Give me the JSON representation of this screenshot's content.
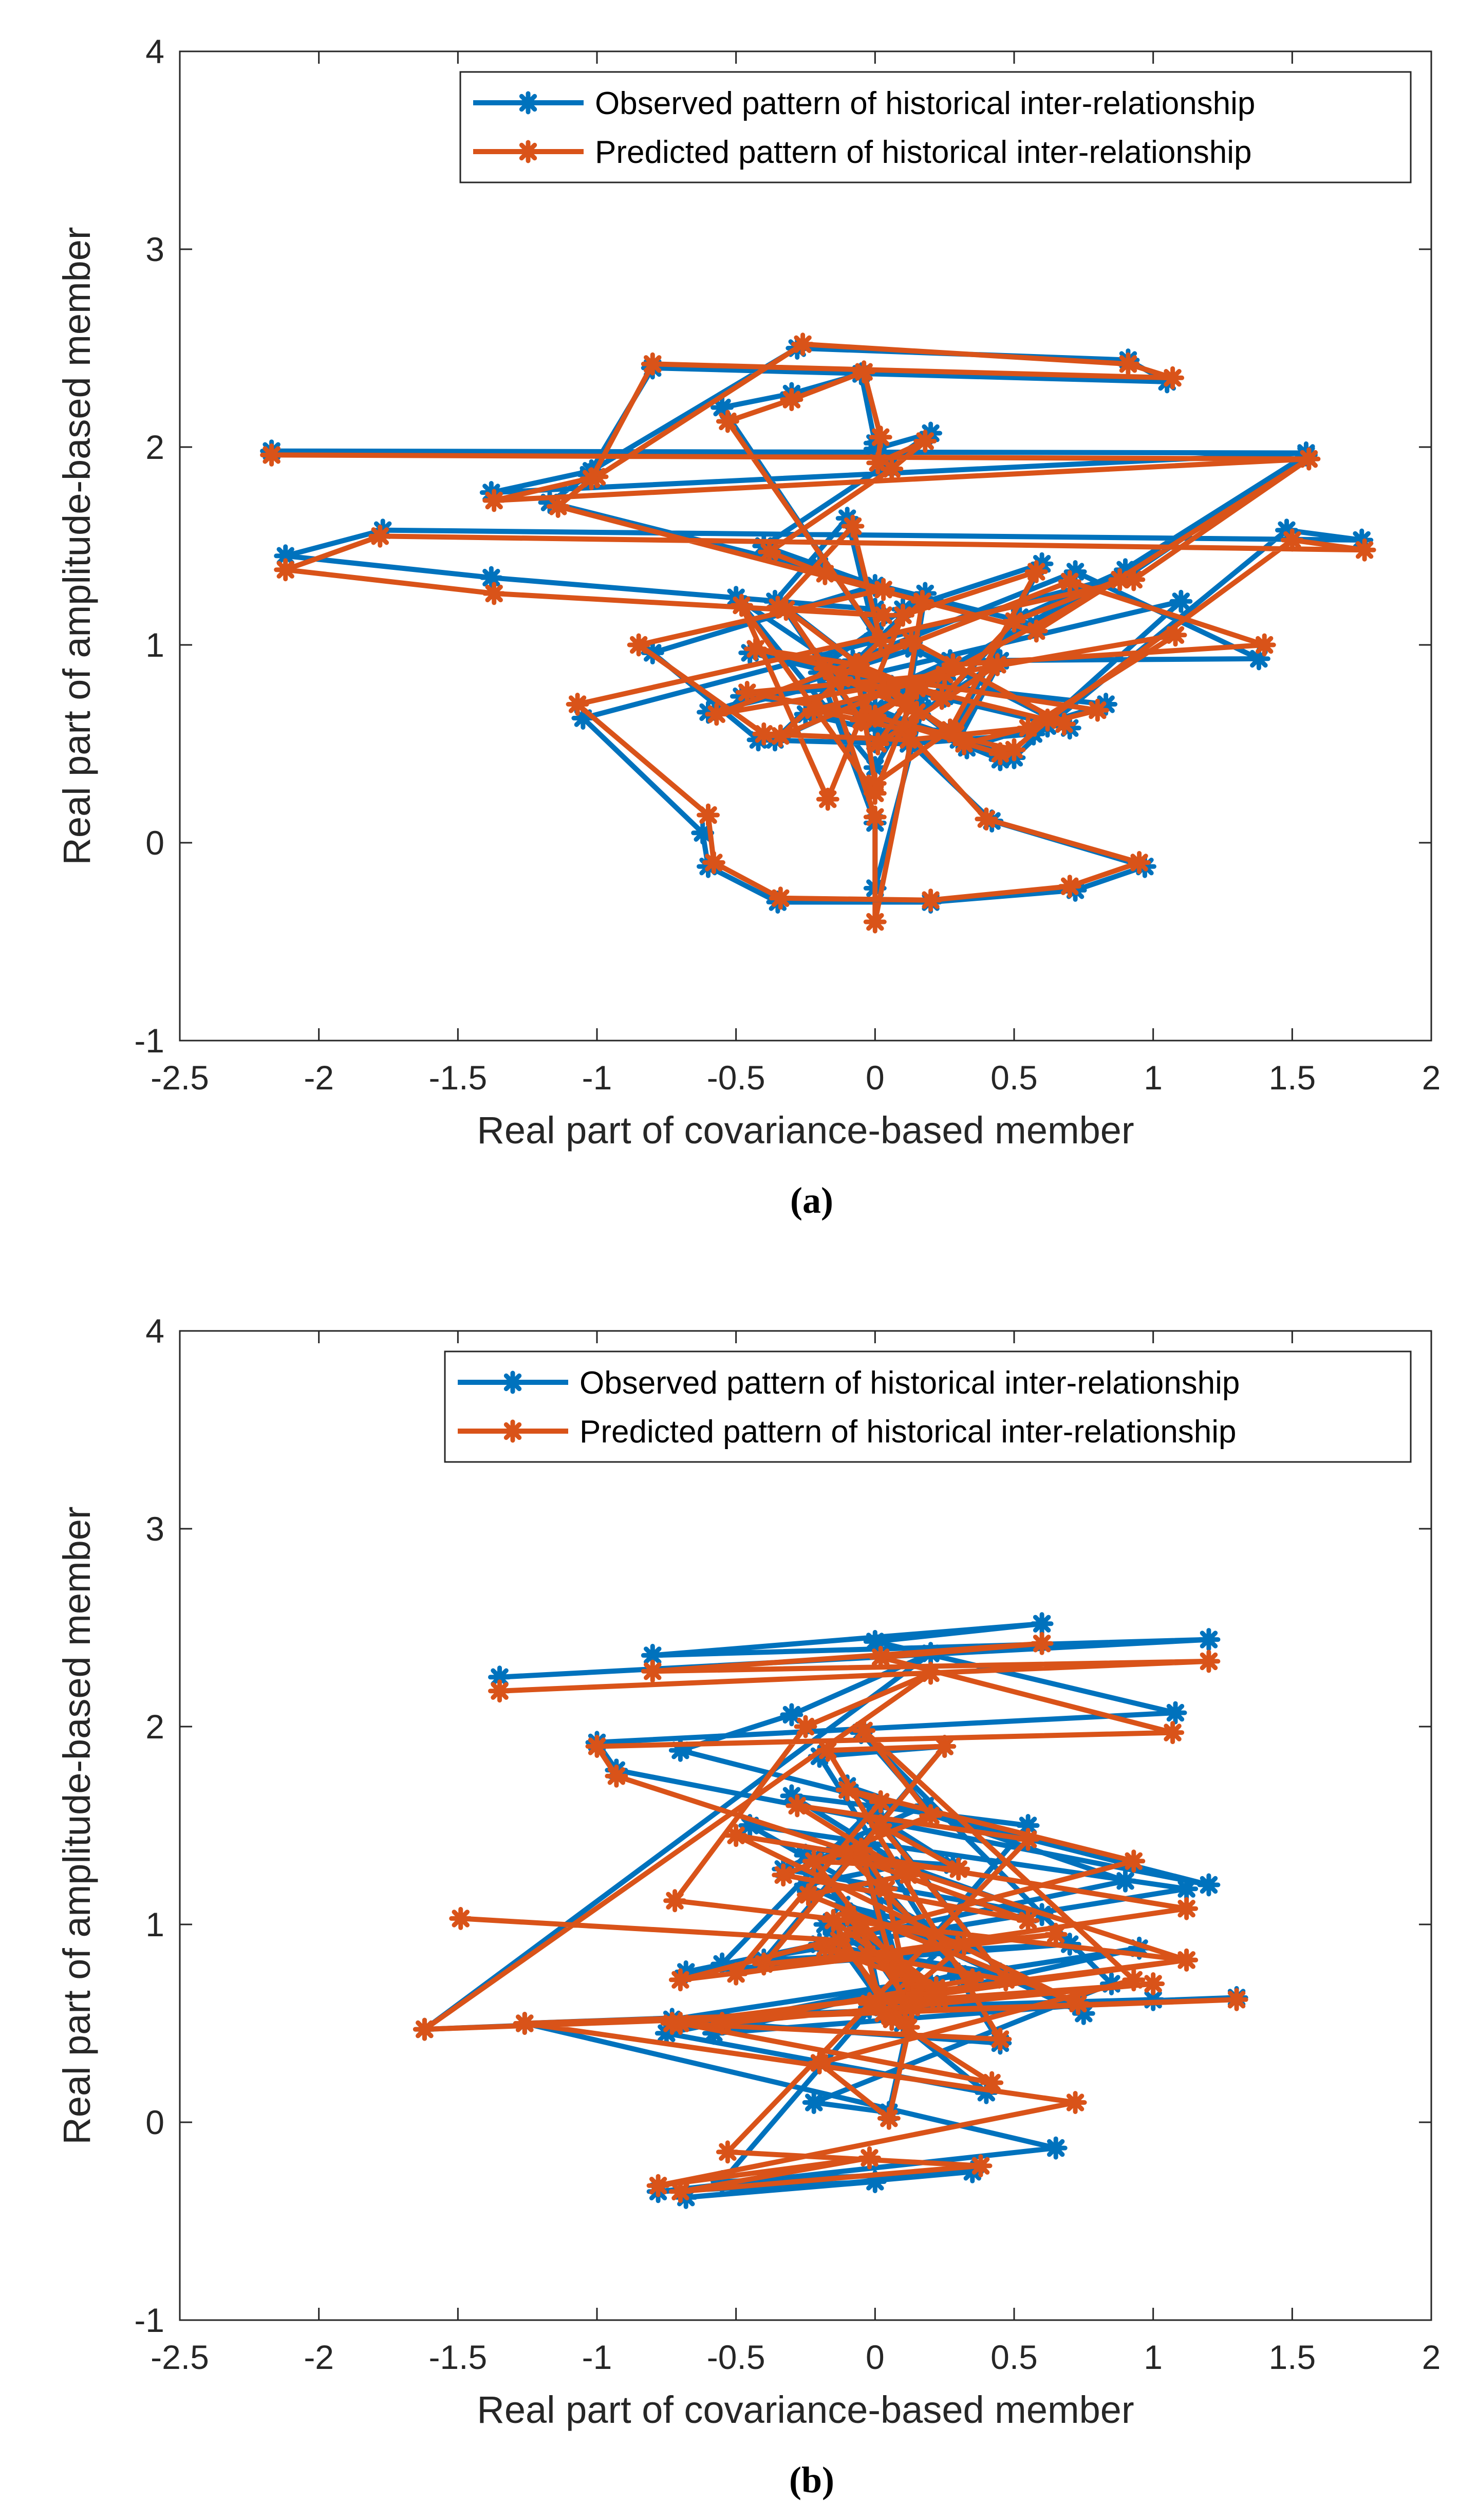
{
  "figure_captions": [
    "(a)",
    "(b)"
  ],
  "colors": {
    "observed": "#0072BD",
    "predicted": "#D95319",
    "axis": "#262626"
  },
  "chart_data": [
    {
      "type": "line",
      "panel": "a",
      "caption": "(a)",
      "xlabel": "Real part of covariance-based member",
      "ylabel": "Real part of amplitude-based member",
      "xlim": [
        -2.5,
        2
      ],
      "ylim": [
        -1,
        4
      ],
      "xticks": [
        "-2.5",
        "-2",
        "-1.5",
        "-1",
        "-0.5",
        "0",
        "0.5",
        "1",
        "1.5",
        "2"
      ],
      "yticks": [
        "-1",
        "0",
        "1",
        "2",
        "3",
        "4"
      ],
      "grid": false,
      "legend_position": "top-right",
      "series": [
        {
          "name": "Observed pattern of historical inter-relationship",
          "x": [
            -2.17,
            1.55,
            -1.38,
            -1.02,
            -0.28,
            0.91,
            1.05,
            -0.8,
            -1.03,
            -1.17,
            0.58,
            1.55,
            0.92,
            -1.05,
            -0.62,
            -0.6,
            -0.35,
            0.2,
            0.72,
            0.97,
            0.42,
            0.1,
            -0.25,
            0.25,
            -0.48,
            0.0,
            0.5,
            0.62,
            1.48,
            1.75,
            -1.77,
            -2.12,
            -1.38,
            0.0,
            -0.36,
            -0.1,
            0.0,
            -0.55,
            -0.3,
            -0.05,
            0.0,
            0.0,
            0.2,
            0.05,
            -0.4,
            -0.2,
            0.0,
            -0.8,
            -0.42,
            0.12,
            0.57,
            1.1,
            -0.6,
            0.14,
            0.7,
            -0.45,
            -0.08,
            0.25,
            0.52,
            0.9,
            -0.06,
            -0.34,
            0.33,
            0.83,
            -0.2,
            0.0,
            0.0,
            0.17,
            -0.14,
            0.06,
            0.3,
            0.45,
            0.0,
            0.12,
            0.18,
            -0.36,
            0.27,
            1.38,
            0.72,
            -0.08,
            0.0,
            0.28,
            0.6,
            0.1,
            -0.16,
            -0.5,
            0.0,
            0.16,
            0.0,
            0.45
          ],
          "y": [
            1.98,
            1.97,
            1.77,
            1.88,
            2.5,
            2.44,
            2.33,
            2.4,
            1.86,
            1.72,
            1.1,
            1.96,
            1.36,
            0.63,
            0.05,
            -0.12,
            -0.3,
            -0.3,
            -0.24,
            -0.12,
            0.11,
            0.54,
            0.65,
            0.83,
            0.74,
            0.67,
            0.43,
            0.59,
            1.58,
            1.53,
            1.58,
            1.45,
            1.34,
            1.18,
            1.22,
            1.64,
            1.05,
            2.2,
            2.27,
            2.37,
            2.02,
            1.99,
            2.07,
            1.92,
            1.5,
            1.4,
            1.3,
            0.96,
            0.52,
            0.5,
            0.55,
            1.22,
            0.66,
            0.98,
            0.58,
            0.96,
            0.88,
            0.74,
            1.14,
            1.38,
            0.63,
            1.21,
            0.48,
            0.7,
            0.86,
            0.1,
            -0.23,
            0.68,
            0.85,
            0.79,
            0.52,
            0.92,
            0.51,
            0.72,
            1.26,
            0.52,
            0.92,
            0.93,
            1.37,
            0.92,
            0.6,
            0.56,
            1.41,
            1.18,
            0.92,
            1.24,
            0.38,
            0.76,
            0.68,
            0.42
          ]
        },
        {
          "name": "Predicted pattern of historical inter-relationship",
          "x": [
            -2.17,
            1.56,
            -1.37,
            -1.0,
            -0.26,
            0.91,
            1.07,
            -0.8,
            -1.02,
            -1.14,
            0.58,
            1.56,
            0.93,
            -1.07,
            -0.6,
            -0.58,
            -0.34,
            0.2,
            0.7,
            0.95,
            0.4,
            0.11,
            -0.22,
            0.25,
            -0.46,
            -0.02,
            0.5,
            0.62,
            1.5,
            1.76,
            -1.78,
            -2.12,
            -1.37,
            0.03,
            -0.35,
            -0.08,
            0.02,
            -0.53,
            -0.3,
            -0.04,
            0.02,
            0.01,
            0.18,
            0.06,
            -0.38,
            -0.18,
            0.03,
            -0.85,
            -0.4,
            0.12,
            0.55,
            1.08,
            -0.57,
            0.13,
            0.68,
            -0.43,
            -0.06,
            0.24,
            0.5,
            0.88,
            -0.05,
            -0.32,
            0.32,
            0.8,
            -0.18,
            0.0,
            0.0,
            0.15,
            -0.12,
            0.05,
            0.29,
            0.44,
            0.01,
            0.11,
            0.17,
            -0.34,
            0.28,
            1.4,
            0.7,
            -0.07,
            0.0,
            0.27,
            0.58,
            0.1,
            -0.17,
            -0.48,
            0.0,
            0.15,
            0.0,
            0.45
          ],
          "y": [
            1.96,
            1.94,
            1.73,
            1.85,
            2.52,
            2.42,
            2.35,
            2.42,
            1.84,
            1.7,
            1.07,
            1.94,
            1.33,
            0.7,
            0.14,
            -0.1,
            -0.28,
            -0.29,
            -0.22,
            -0.1,
            0.12,
            0.57,
            0.67,
            0.85,
            0.76,
            0.64,
            0.47,
            0.62,
            1.53,
            1.48,
            1.55,
            1.38,
            1.26,
            1.15,
            1.19,
            1.6,
            1.02,
            2.13,
            2.24,
            2.38,
            2.05,
            1.92,
            2.03,
            1.89,
            1.47,
            1.36,
            1.28,
            1.0,
            0.55,
            0.52,
            0.58,
            1.05,
            0.65,
            1.02,
            0.6,
            0.98,
            0.9,
            0.73,
            1.12,
            1.33,
            0.62,
            1.18,
            0.5,
            0.67,
            0.88,
            0.13,
            -0.4,
            0.66,
            0.83,
            0.77,
            0.55,
            0.9,
            0.5,
            0.7,
            1.22,
            0.54,
            0.9,
            1.0,
            1.32,
            0.9,
            0.3,
            0.57,
            1.37,
            1.15,
            0.22,
            1.2,
            0.25,
            0.78,
            0.64,
            0.45
          ]
        }
      ]
    },
    {
      "type": "line",
      "panel": "b",
      "caption": "(b)",
      "xlabel": "Real part of covariance-based member",
      "ylabel": "Real part of amplitude-based member",
      "xlim": [
        -2.5,
        2
      ],
      "ylim": [
        -1,
        4
      ],
      "xticks": [
        "-2.5",
        "-2",
        "-1.5",
        "-1",
        "-0.5",
        "0",
        "0.5",
        "1",
        "1.5",
        "2"
      ],
      "yticks": [
        "-1",
        "0",
        "1",
        "2",
        "3",
        "4"
      ],
      "grid": false,
      "legend_position": "top-right",
      "series": [
        {
          "name": "Observed pattern of historical inter-relationship",
          "x": [
            -1.35,
            1.2,
            -0.8,
            0.6,
            0.0,
            1.08,
            -1.0,
            -0.93,
            1.2,
            -0.7,
            -0.3,
            0.2,
            -1.62,
            1.3,
            -1.26,
            0.65,
            -0.78,
            0.0,
            -0.68,
            0.35,
            -0.55,
            0.55,
            -0.3,
            0.1,
            -0.25,
            0.75,
            -0.45,
            1.12,
            -0.55,
            0.0,
            -0.1,
            0.9,
            -0.68,
            0.7,
            -0.4,
            0.25,
            -0.2,
            0.45,
            -0.73,
            0.95,
            -0.02,
            1.0,
            -0.58,
            0.3,
            -0.1,
            0.6,
            -0.33,
            0.18,
            -0.05,
            0.85,
            -0.22,
            0.05,
            0.15,
            -0.75,
            0.4,
            0.05,
            -0.18,
            0.22,
            0.08,
            -0.12,
            0.3,
            0.02,
            -0.02,
            0.1,
            -0.25,
            0.28,
            0.0,
            0.45,
            -0.2,
            0.2,
            -0.08,
            0.12,
            0.0,
            -0.05,
            0.1,
            -0.14
          ],
          "y": [
            2.25,
            2.44,
            2.36,
            2.52,
            2.43,
            2.07,
            1.92,
            1.78,
            1.2,
            1.88,
            2.06,
            2.37,
            0.47,
            0.63,
            0.5,
            -0.13,
            -0.35,
            -0.3,
            -0.38,
            -0.25,
            -0.3,
            1.5,
            1.65,
            1.3,
            1.2,
            0.55,
            1.5,
            1.18,
            0.8,
            1.6,
            1.7,
            1.22,
            0.76,
            0.9,
            0.82,
            1.9,
            1.85,
            0.4,
            0.52,
            0.88,
            0.58,
            0.62,
            0.45,
            0.75,
            1.4,
            1.05,
            1.28,
            1.6,
            1.97,
            0.7,
            0.1,
            0.05,
            0.7,
            0.45,
            0.15,
            0.55,
            1.0,
            0.65,
            0.82,
            1.1,
            0.95,
            0.6,
            0.88,
            0.7,
            1.35,
            1.3,
            1.55,
            0.75,
            0.9,
            0.7,
            1.0,
            0.6,
            1.2,
            1.4,
            0.5,
            0.95
          ]
        },
        {
          "name": "Predicted pattern of historical inter-relationship",
          "x": [
            -1.35,
            1.2,
            -0.8,
            0.6,
            0.02,
            1.07,
            -1.0,
            -0.93,
            1.12,
            -0.72,
            -0.25,
            0.2,
            -1.62,
            1.3,
            -1.26,
            0.72,
            -0.78,
            -0.02,
            -0.7,
            0.38,
            -0.53,
            0.55,
            -0.28,
            0.12,
            -0.24,
            0.73,
            -0.5,
            1.12,
            -0.5,
            0.02,
            -0.1,
            0.93,
            -0.7,
            0.65,
            -0.4,
            0.25,
            -0.17,
            0.45,
            -0.73,
            1.12,
            -0.02,
            1.0,
            -0.55,
            0.35,
            -0.1,
            0.55,
            -0.33,
            0.2,
            -0.04,
            0.93,
            -0.2,
            0.05,
            0.15,
            -0.7,
            0.42,
            0.06,
            -0.15,
            0.23,
            0.06,
            -0.1,
            0.32,
            0.03,
            -0.03,
            0.12,
            -0.22,
            0.3,
            0.02,
            0.47,
            -0.18,
            0.22,
            -0.06,
            0.13,
            0.04,
            -0.05,
            0.12,
            -0.13,
            -1.49
          ],
          "y": [
            2.18,
            2.33,
            2.28,
            2.42,
            2.35,
            1.97,
            1.9,
            1.75,
            0.82,
            1.12,
            2.0,
            2.27,
            0.47,
            0.62,
            0.5,
            0.1,
            -0.32,
            -0.18,
            -0.35,
            -0.22,
            -0.15,
            1.43,
            1.6,
            1.25,
            1.15,
            0.6,
            1.45,
            1.08,
            0.75,
            1.62,
            1.68,
            1.32,
            0.72,
            0.95,
            0.8,
            1.9,
            1.88,
            0.42,
            0.5,
            0.82,
            0.6,
            0.7,
            0.5,
            0.72,
            1.35,
            1.02,
            1.25,
            1.55,
            1.98,
            0.72,
            0.3,
            0.02,
            0.65,
            0.5,
            0.2,
            0.52,
            1.02,
            0.62,
            0.84,
            1.05,
            0.9,
            0.55,
            0.85,
            0.72,
            1.32,
            1.28,
            1.5,
            0.72,
            0.88,
            0.68,
            0.98,
            0.58,
            1.18,
            1.38,
            0.48,
            0.92,
            1.03
          ]
        }
      ]
    }
  ]
}
